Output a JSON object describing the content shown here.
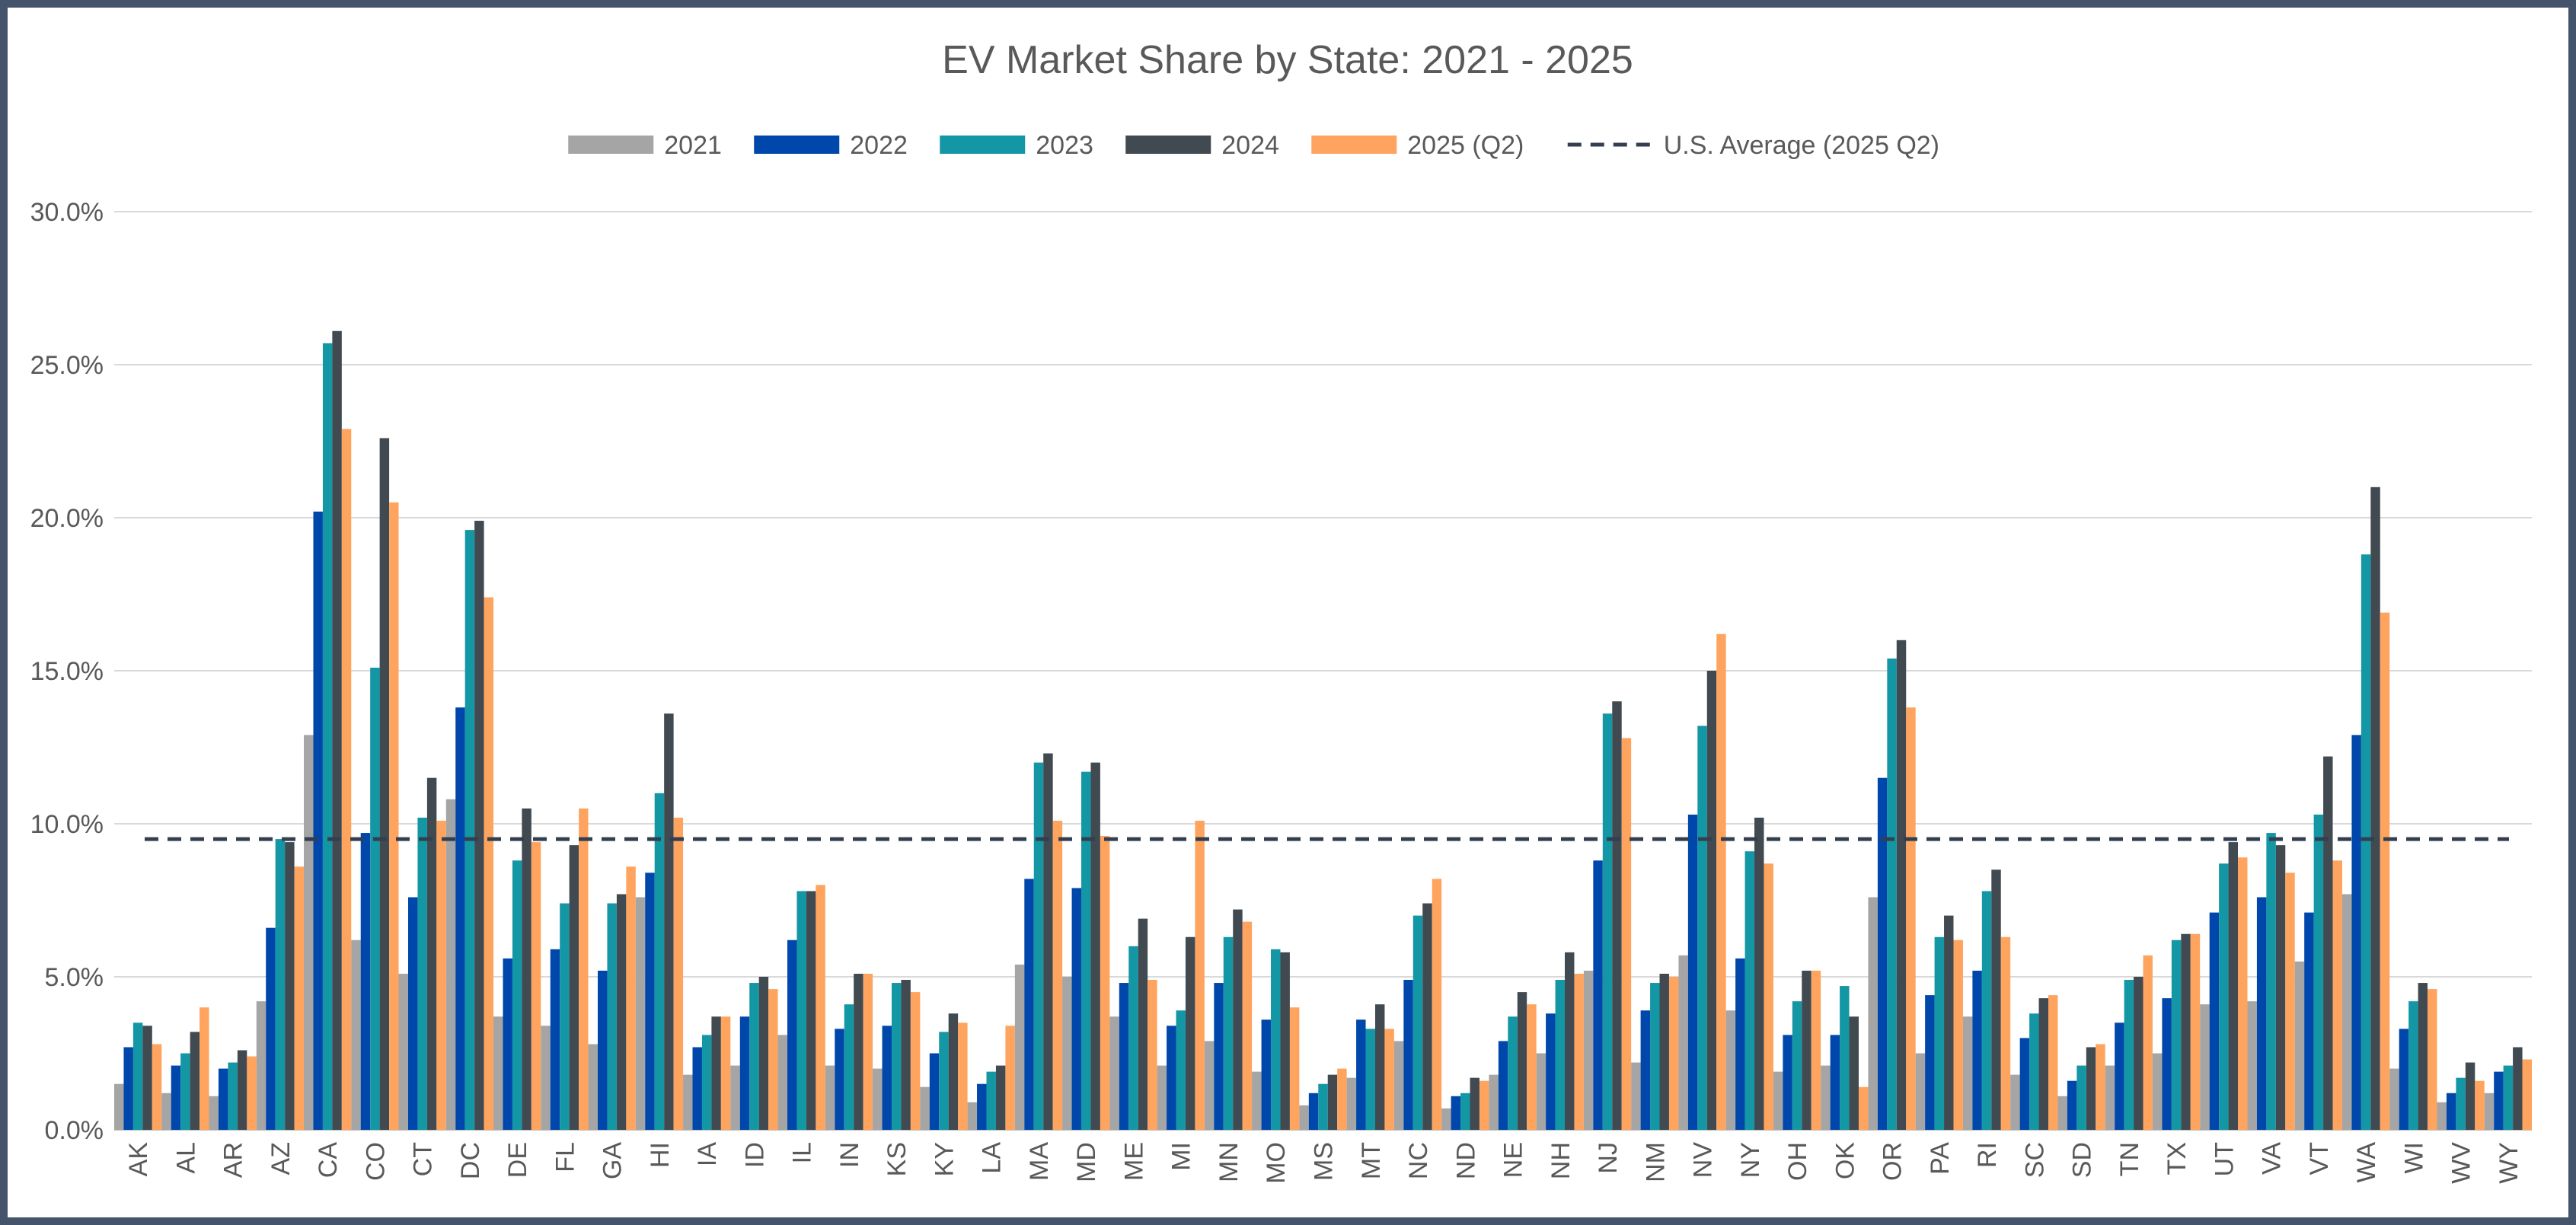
{
  "chart_data": {
    "type": "bar",
    "title": "EV Market Share by State: 2021 - 2025",
    "xlabel": "",
    "ylabel": "",
    "ylim": [
      0,
      30
    ],
    "y_ticks": [
      "0.0%",
      "5.0%",
      "10.0%",
      "15.0%",
      "20.0%",
      "25.0%",
      "30.0%"
    ],
    "grid": true,
    "legend_position": "top",
    "categories": [
      "AK",
      "AL",
      "AR",
      "AZ",
      "CA",
      "CO",
      "CT",
      "DC",
      "DE",
      "FL",
      "GA",
      "HI",
      "IA",
      "ID",
      "IL",
      "IN",
      "KS",
      "KY",
      "LA",
      "MA",
      "MD",
      "ME",
      "MI",
      "MN",
      "MO",
      "MS",
      "MT",
      "NC",
      "ND",
      "NE",
      "NH",
      "NJ",
      "NM",
      "NV",
      "NY",
      "OH",
      "OK",
      "OR",
      "PA",
      "RI",
      "SC",
      "SD",
      "TN",
      "TX",
      "UT",
      "VA",
      "VT",
      "WA",
      "WI",
      "WV",
      "WY"
    ],
    "series": [
      {
        "name": "2021",
        "color": "#a5a5a5",
        "values": [
          1.5,
          1.2,
          1.1,
          4.2,
          12.9,
          6.2,
          5.1,
          10.8,
          3.7,
          3.4,
          2.8,
          7.6,
          1.8,
          2.1,
          3.1,
          2.1,
          2.0,
          1.4,
          0.9,
          5.4,
          5.0,
          3.7,
          2.1,
          2.9,
          1.9,
          0.8,
          1.7,
          2.9,
          0.7,
          1.8,
          2.5,
          5.2,
          2.2,
          5.7,
          3.9,
          1.9,
          2.1,
          7.6,
          2.5,
          3.7,
          1.8,
          1.1,
          2.1,
          2.5,
          4.1,
          4.2,
          5.5,
          7.7,
          2.0,
          0.9,
          1.2
        ]
      },
      {
        "name": "2022",
        "color": "#0047ab",
        "values": [
          2.7,
          2.1,
          2.0,
          6.6,
          20.2,
          9.7,
          7.6,
          13.8,
          5.6,
          5.9,
          5.2,
          8.4,
          2.7,
          3.7,
          6.2,
          3.3,
          3.4,
          2.5,
          1.5,
          8.2,
          7.9,
          4.8,
          3.4,
          4.8,
          3.6,
          1.2,
          3.6,
          4.9,
          1.1,
          2.9,
          3.8,
          8.8,
          3.9,
          10.3,
          5.6,
          3.1,
          3.1,
          11.5,
          4.4,
          5.2,
          3.0,
          1.6,
          3.5,
          4.3,
          7.1,
          7.6,
          7.1,
          12.9,
          3.3,
          1.2,
          1.9
        ]
      },
      {
        "name": "2023",
        "color": "#1497a5",
        "values": [
          3.5,
          2.5,
          2.2,
          9.5,
          25.7,
          15.1,
          10.2,
          19.6,
          8.8,
          7.4,
          7.4,
          11.0,
          3.1,
          4.8,
          7.8,
          4.1,
          4.8,
          3.2,
          1.9,
          12.0,
          11.7,
          6.0,
          3.9,
          6.3,
          5.9,
          1.5,
          3.3,
          7.0,
          1.2,
          3.7,
          4.9,
          13.6,
          4.8,
          13.2,
          9.1,
          4.2,
          4.7,
          15.4,
          6.3,
          7.8,
          3.8,
          2.1,
          4.9,
          6.2,
          8.7,
          9.7,
          10.3,
          18.8,
          4.2,
          1.7,
          2.1
        ]
      },
      {
        "name": "2024",
        "color": "#414a51",
        "values": [
          3.4,
          3.2,
          2.6,
          9.4,
          26.1,
          22.6,
          11.5,
          19.9,
          10.5,
          9.3,
          7.7,
          13.6,
          3.7,
          5.0,
          7.8,
          5.1,
          4.9,
          3.8,
          2.1,
          12.3,
          12.0,
          6.9,
          6.3,
          7.2,
          5.8,
          1.8,
          4.1,
          7.4,
          1.7,
          4.5,
          5.8,
          14.0,
          5.1,
          15.0,
          10.2,
          5.2,
          3.7,
          16.0,
          7.0,
          8.5,
          4.3,
          2.7,
          5.0,
          6.4,
          9.4,
          9.3,
          12.2,
          21.0,
          4.8,
          2.2,
          2.7
        ]
      },
      {
        "name": "2025 (Q2)",
        "color": "#ffa45f",
        "values": [
          2.8,
          4.0,
          2.4,
          8.6,
          22.9,
          20.5,
          10.1,
          17.4,
          9.4,
          10.5,
          8.6,
          10.2,
          3.7,
          4.6,
          8.0,
          5.1,
          4.5,
          3.5,
          3.4,
          10.1,
          9.6,
          4.9,
          10.1,
          6.8,
          4.0,
          2.0,
          3.3,
          8.2,
          1.6,
          4.1,
          5.1,
          12.8,
          5.0,
          16.2,
          8.7,
          5.2,
          1.4,
          13.8,
          6.2,
          6.3,
          4.4,
          2.8,
          5.7,
          6.4,
          8.9,
          8.4,
          8.8,
          16.9,
          4.6,
          1.6,
          2.3
        ]
      }
    ],
    "reference_line": {
      "name": "U.S. Average (2025 Q2)",
      "value": 9.5,
      "color": "#333f50",
      "style": "dashed"
    }
  }
}
